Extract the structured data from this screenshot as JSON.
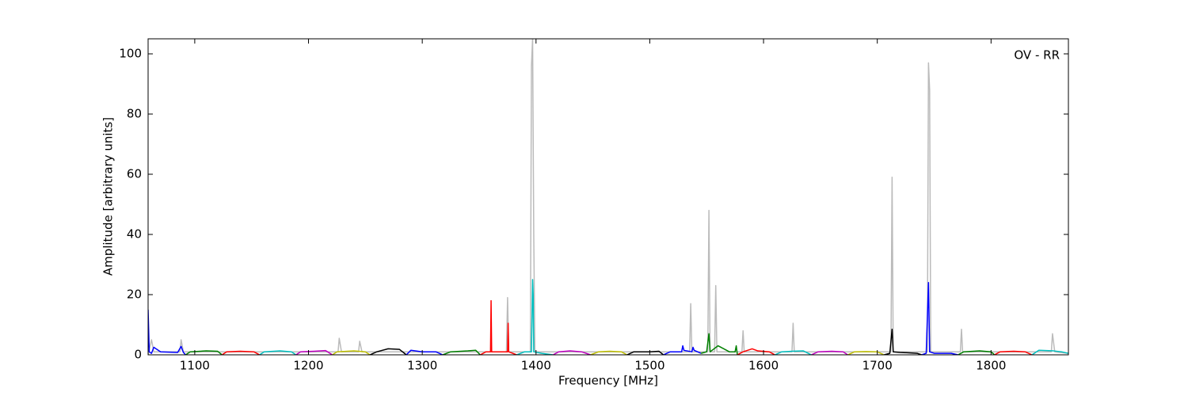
{
  "chart_data": {
    "type": "line",
    "xlabel": "Frequency [MHz]",
    "ylabel": "Amplitude [arbitrary units]",
    "annotation": "OV - RR",
    "xlim": [
      1059,
      1868
    ],
    "ylim": [
      0,
      105
    ],
    "xticks": [
      1100,
      1200,
      1300,
      1400,
      1500,
      1600,
      1700,
      1800
    ],
    "yticks": [
      0,
      20,
      40,
      60,
      80,
      100
    ],
    "series": [
      {
        "color": "#bbbbbb",
        "x": [
          1059,
          1062,
          1064,
          1087,
          1088,
          1090,
          1226,
          1227,
          1229,
          1244,
          1245,
          1247,
          1374,
          1375,
          1376,
          1395,
          1396,
          1397,
          1398,
          1399,
          1535,
          1536,
          1537,
          1551,
          1552,
          1553,
          1557,
          1558,
          1559,
          1581,
          1582,
          1583,
          1625,
          1626,
          1627,
          1712,
          1713,
          1714,
          1744,
          1745,
          1746,
          1747,
          1773,
          1774,
          1775,
          1853,
          1854,
          1856,
          1868
        ],
        "values": [
          0,
          5,
          1,
          1,
          5,
          1,
          1,
          5.5,
          1,
          1,
          4.5,
          1,
          1,
          19,
          1,
          1,
          96,
          105,
          40,
          1,
          1,
          17,
          1,
          1,
          48,
          1,
          1,
          23,
          1,
          1,
          8,
          1,
          1,
          10.5,
          1,
          1,
          59,
          1,
          1,
          97,
          88,
          1,
          1,
          8.5,
          1,
          1,
          7,
          1,
          0.5
        ]
      },
      {
        "color": "#0000ff",
        "x": [
          1059,
          1060,
          1062,
          1064,
          1070,
          1085,
          1088,
          1090,
          1092
        ],
        "values": [
          15,
          1,
          0.5,
          2.5,
          1,
          0.8,
          2.8,
          0.8,
          0
        ]
      },
      {
        "color": "#008000",
        "x": [
          1092,
          1096,
          1110,
          1120,
          1124
        ],
        "values": [
          0,
          1,
          1.3,
          1.2,
          0
        ]
      },
      {
        "color": "#ff0000",
        "x": [
          1124,
          1128,
          1140,
          1152,
          1157
        ],
        "values": [
          0,
          1,
          1.2,
          1,
          0
        ]
      },
      {
        "color": "#00bfbf",
        "x": [
          1157,
          1161,
          1175,
          1185,
          1189
        ],
        "values": [
          0,
          1,
          1.3,
          1,
          0
        ]
      },
      {
        "color": "#bf00bf",
        "x": [
          1189,
          1193,
          1205,
          1215,
          1221
        ],
        "values": [
          0,
          1,
          1.2,
          1.4,
          0
        ]
      },
      {
        "color": "#bfbf00",
        "x": [
          1221,
          1225,
          1240,
          1250,
          1254
        ],
        "values": [
          0,
          1,
          1.3,
          1,
          0
        ]
      },
      {
        "color": "#000000",
        "x": [
          1254,
          1260,
          1270,
          1280,
          1286
        ],
        "values": [
          0,
          1,
          2,
          1.8,
          0
        ]
      },
      {
        "color": "#0000ff",
        "x": [
          1286,
          1290,
          1300,
          1312,
          1318
        ],
        "values": [
          0,
          1.5,
          1,
          1,
          0
        ]
      },
      {
        "color": "#008000",
        "x": [
          1318,
          1325,
          1340,
          1347,
          1351
        ],
        "values": [
          0,
          1,
          1.3,
          1.5,
          0
        ]
      },
      {
        "color": "#ff0000",
        "x": [
          1351,
          1356,
          1360,
          1360.5,
          1361,
          1370,
          1375,
          1375.5,
          1376,
          1383
        ],
        "values": [
          0,
          1,
          1,
          18,
          1,
          1,
          1,
          10.5,
          1,
          0
        ]
      },
      {
        "color": "#00bfbf",
        "x": [
          1383,
          1390,
          1396,
          1397,
          1397.5,
          1398,
          1405,
          1415
        ],
        "values": [
          0,
          1,
          1,
          25,
          20,
          1,
          0.5,
          0
        ]
      },
      {
        "color": "#bf00bf",
        "x": [
          1415,
          1420,
          1430,
          1440,
          1448
        ],
        "values": [
          0,
          1,
          1.3,
          1,
          0
        ]
      },
      {
        "color": "#bfbf00",
        "x": [
          1448,
          1455,
          1465,
          1475,
          1480
        ],
        "values": [
          0,
          1,
          1.2,
          1,
          0
        ]
      },
      {
        "color": "#000000",
        "x": [
          1480,
          1486,
          1500,
          1508,
          1512
        ],
        "values": [
          0,
          1,
          1,
          1.2,
          0
        ]
      },
      {
        "color": "#0000ff",
        "x": [
          1512,
          1518,
          1528,
          1529,
          1530,
          1537,
          1538,
          1539,
          1545
        ],
        "values": [
          0,
          1,
          1,
          3,
          1.5,
          1,
          2.5,
          1.5,
          0.5
        ]
      },
      {
        "color": "#008000",
        "x": [
          1545,
          1550,
          1552,
          1553,
          1560,
          1570,
          1575,
          1576,
          1577
        ],
        "values": [
          0.5,
          1,
          7,
          1,
          3,
          1,
          1,
          3,
          0
        ]
      },
      {
        "color": "#ff0000",
        "x": [
          1577,
          1582,
          1590,
          1595,
          1605,
          1610
        ],
        "values": [
          0,
          1,
          2,
          1.3,
          1,
          0
        ]
      },
      {
        "color": "#00bfbf",
        "x": [
          1610,
          1616,
          1625,
          1635,
          1642
        ],
        "values": [
          0,
          1,
          1.2,
          1.3,
          0
        ]
      },
      {
        "color": "#bf00bf",
        "x": [
          1642,
          1648,
          1660,
          1670,
          1674
        ],
        "values": [
          0,
          1,
          1.2,
          1,
          0
        ]
      },
      {
        "color": "#bfbf00",
        "x": [
          1674,
          1680,
          1690,
          1700,
          1706
        ],
        "values": [
          0,
          1,
          1.1,
          1,
          0
        ]
      },
      {
        "color": "#000000",
        "x": [
          1706,
          1711,
          1713,
          1714,
          1720,
          1735,
          1739
        ],
        "values": [
          0,
          0.5,
          8.5,
          1,
          0.8,
          0.5,
          0
        ]
      },
      {
        "color": "#0000ff",
        "x": [
          1739,
          1743,
          1745,
          1746,
          1750,
          1765,
          1771
        ],
        "values": [
          0,
          0.5,
          24,
          1,
          0.5,
          0.5,
          0
        ]
      },
      {
        "color": "#008000",
        "x": [
          1771,
          1776,
          1790,
          1800,
          1803
        ],
        "values": [
          0,
          1,
          1.3,
          1,
          0
        ]
      },
      {
        "color": "#ff0000",
        "x": [
          1803,
          1808,
          1820,
          1830,
          1836
        ],
        "values": [
          0,
          1,
          1.2,
          1,
          0
        ]
      },
      {
        "color": "#00bfbf",
        "x": [
          1836,
          1842,
          1855,
          1862,
          1868
        ],
        "values": [
          0,
          1.5,
          1.3,
          1,
          0.5
        ]
      }
    ]
  }
}
